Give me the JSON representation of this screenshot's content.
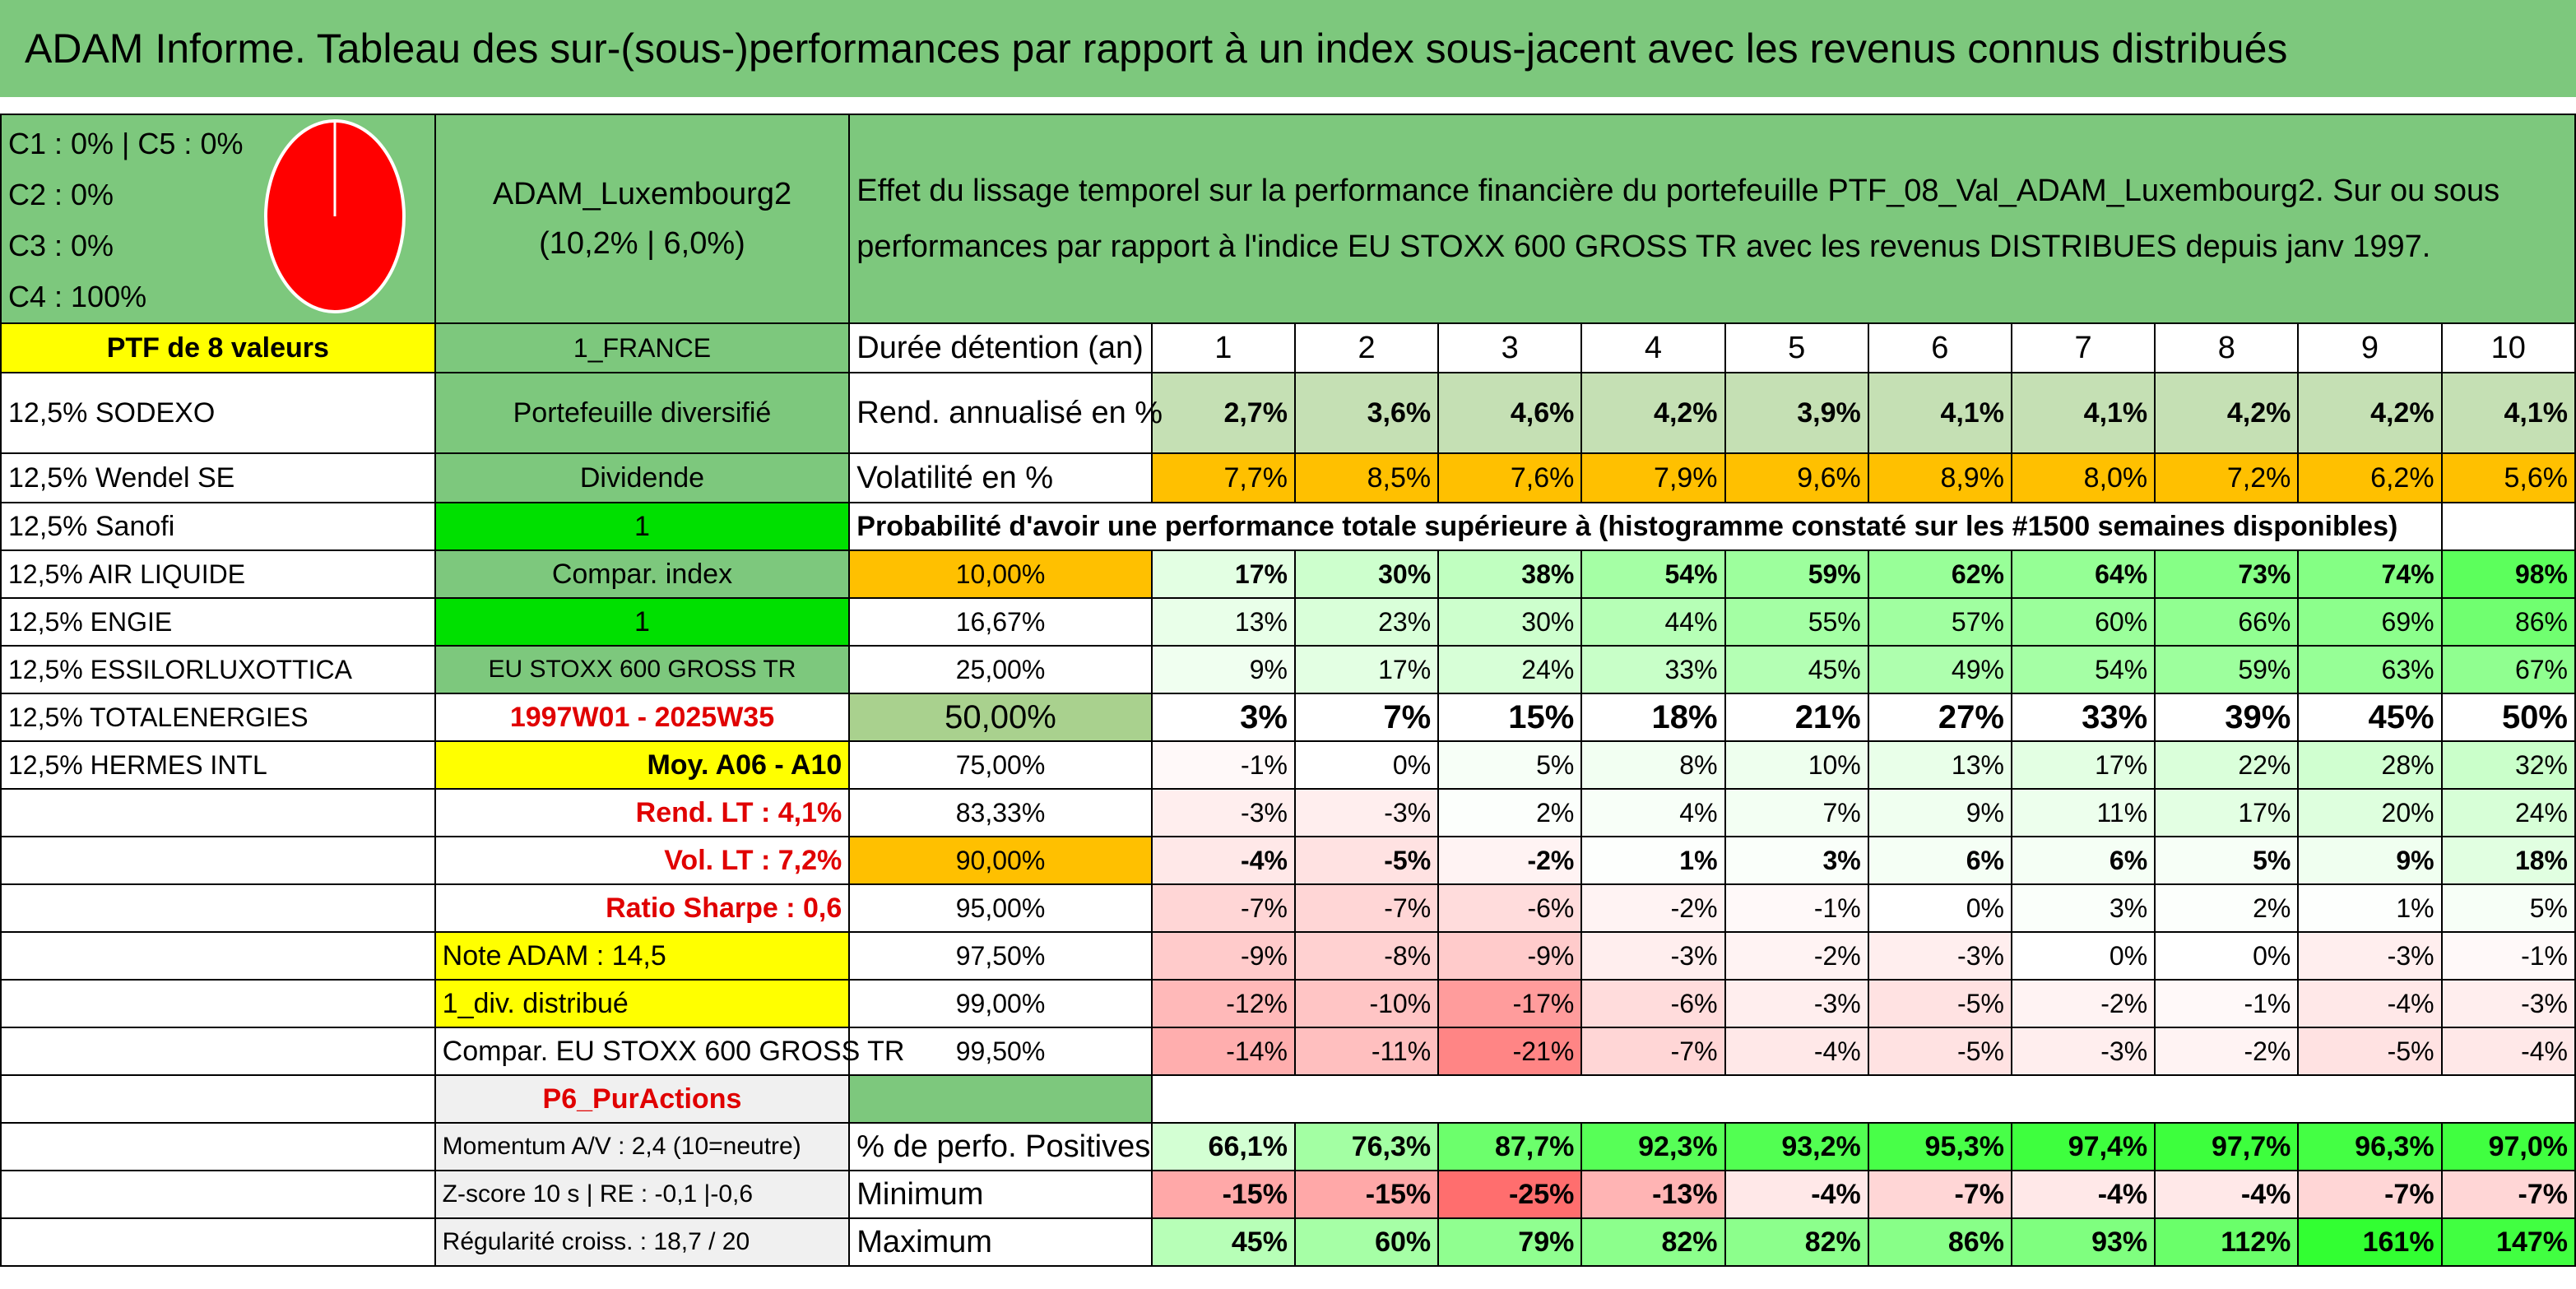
{
  "title": "ADAM Informe. Tableau des sur-(sous-)performances par rapport à un index sous-jacent avec les revenus connus distribués",
  "legend_lines": [
    "C1 : 0% | C5 : 0%",
    "C2 : 0%",
    "C3 : 0%",
    "C4 : 100%"
  ],
  "pie": {
    "C4": 100,
    "C1": 0,
    "C2": 0,
    "C3": 0,
    "C5": 0
  },
  "portfolio": {
    "name": "ADAM_Luxembourg2",
    "sub": "(10,2% | 6,0%)",
    "description_line1": "Effet du lissage temporel sur la performance financière du portefeuille PTF_08_Val_ADAM_Luxembourg2. Sur ou sous",
    "description_line2": "performances par rapport à l'indice EU STOXX 600 GROSS TR avec les revenus DISTRIBUES depuis janv 1997.",
    "ptf_label": "PTF de 8 valeurs",
    "country": "1_FRANCE",
    "diversified": "Portefeuille diversifié",
    "dividend": "Dividende",
    "one_a": "1",
    "compar_index": "Compar. index",
    "one_b": "1",
    "index_name": "EU STOXX 600 GROSS TR",
    "period": "1997W01 - 2025W35",
    "moy": "Moy. A06 - A10",
    "rend_lt": "Rend. LT : 4,1%",
    "vol_lt": "Vol. LT : 7,2%",
    "sharpe": "Ratio Sharpe : 0,6",
    "note": "Note ADAM : 14,5",
    "div": "1_div. distribué",
    "compar": "Compar. EU STOXX 600 GROSS TR",
    "p6": "P6_PurActions",
    "momentum": "Momentum A/V : 2,4 (10=neutre)",
    "zscore": "Z-score 10 s | RE : -0,1 |-0,6",
    "regularite": "Régularité croiss. : 18,7 / 20"
  },
  "holdings": [
    "12,5% SODEXO",
    "12,5% Wendel SE",
    "12,5% Sanofi",
    "12,5% AIR LIQUIDE",
    "12,5% ENGIE",
    "12,5% ESSILORLUXOTTICA",
    "12,5% TOTALENERGIES",
    "12,5% HERMES INTL"
  ],
  "labels": {
    "duree": "Durée détention (an)",
    "rend": "Rend. annualisé en %",
    "vol": "Volatilité en %",
    "proba": "Probabilité d'avoir une performance totale supérieure à (histogramme constaté sur les #1500 semaines disponibles)",
    "pos": "% de perfo. Positives",
    "min": "Minimum",
    "max": "Maximum"
  },
  "years": [
    "1",
    "2",
    "3",
    "4",
    "5",
    "6",
    "7",
    "8",
    "9",
    "10"
  ],
  "rend": [
    "2,7%",
    "3,6%",
    "4,6%",
    "4,2%",
    "3,9%",
    "4,1%",
    "4,1%",
    "4,2%",
    "4,2%",
    "4,1%"
  ],
  "vol": [
    "7,7%",
    "8,5%",
    "7,6%",
    "7,9%",
    "9,6%",
    "8,9%",
    "8,0%",
    "7,2%",
    "6,2%",
    "5,6%"
  ],
  "prob_rows": [
    {
      "label": "10,00%",
      "values": [
        "17%",
        "30%",
        "38%",
        "54%",
        "59%",
        "62%",
        "64%",
        "73%",
        "74%",
        "98%"
      ]
    },
    {
      "label": "16,67%",
      "values": [
        "13%",
        "23%",
        "30%",
        "44%",
        "55%",
        "57%",
        "60%",
        "66%",
        "69%",
        "86%"
      ]
    },
    {
      "label": "25,00%",
      "values": [
        "9%",
        "17%",
        "24%",
        "33%",
        "45%",
        "49%",
        "54%",
        "59%",
        "63%",
        "67%"
      ]
    },
    {
      "label": "50,00%",
      "values": [
        "3%",
        "7%",
        "15%",
        "18%",
        "21%",
        "27%",
        "33%",
        "39%",
        "45%",
        "50%"
      ]
    },
    {
      "label": "75,00%",
      "values": [
        "-1%",
        "0%",
        "5%",
        "8%",
        "10%",
        "13%",
        "17%",
        "22%",
        "28%",
        "32%"
      ]
    },
    {
      "label": "83,33%",
      "values": [
        "-3%",
        "-3%",
        "2%",
        "4%",
        "7%",
        "9%",
        "11%",
        "17%",
        "20%",
        "24%"
      ]
    },
    {
      "label": "90,00%",
      "values": [
        "-4%",
        "-5%",
        "-2%",
        "1%",
        "3%",
        "6%",
        "6%",
        "5%",
        "9%",
        "18%"
      ]
    },
    {
      "label": "95,00%",
      "values": [
        "-7%",
        "-7%",
        "-6%",
        "-2%",
        "-1%",
        "0%",
        "3%",
        "2%",
        "1%",
        "5%"
      ]
    },
    {
      "label": "97,50%",
      "values": [
        "-9%",
        "-8%",
        "-9%",
        "-3%",
        "-2%",
        "-3%",
        "0%",
        "0%",
        "-3%",
        "-1%"
      ]
    },
    {
      "label": "99,00%",
      "values": [
        "-12%",
        "-10%",
        "-17%",
        "-6%",
        "-3%",
        "-5%",
        "-2%",
        "-1%",
        "-4%",
        "-3%"
      ]
    },
    {
      "label": "99,50%",
      "values": [
        "-14%",
        "-11%",
        "-21%",
        "-7%",
        "-4%",
        "-5%",
        "-3%",
        "-2%",
        "-5%",
        "-4%"
      ]
    }
  ],
  "positives": [
    "66,1%",
    "76,3%",
    "87,7%",
    "92,3%",
    "93,2%",
    "95,3%",
    "97,4%",
    "97,7%",
    "96,3%",
    "97,0%"
  ],
  "minimum": [
    "-15%",
    "-15%",
    "-25%",
    "-13%",
    "-4%",
    "-7%",
    "-4%",
    "-4%",
    "-7%",
    "-7%"
  ],
  "maximum": [
    "45%",
    "60%",
    "79%",
    "82%",
    "82%",
    "86%",
    "93%",
    "112%",
    "161%",
    "147%"
  ],
  "colors": {
    "header_green": "#7dc87d",
    "yellow": "#ffff00",
    "orange": "#ffc000",
    "bright_green": "#00e000",
    "red_text": "#e00000",
    "pie_red": "#ff0000"
  }
}
